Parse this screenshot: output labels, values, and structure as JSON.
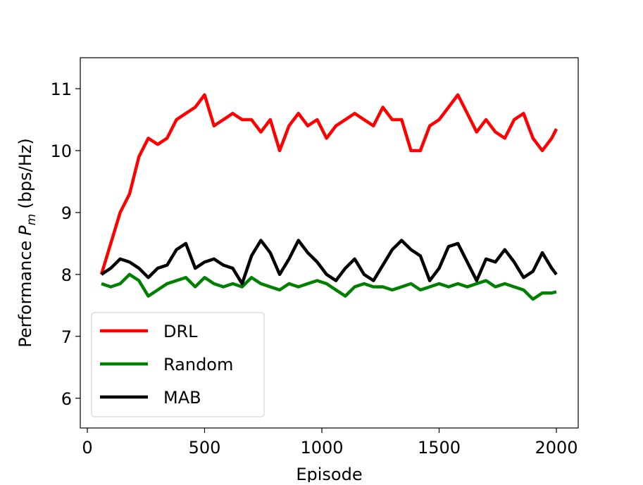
{
  "chart_data": {
    "type": "line",
    "xlabel": "Episode",
    "ylabel": [
      "Performance",
      "P",
      "m",
      "(bps/Hz)"
    ],
    "x": [
      60,
      100,
      140,
      180,
      220,
      260,
      300,
      340,
      380,
      420,
      460,
      500,
      540,
      580,
      620,
      660,
      700,
      740,
      780,
      820,
      860,
      900,
      940,
      980,
      1020,
      1060,
      1100,
      1140,
      1180,
      1220,
      1260,
      1300,
      1340,
      1380,
      1420,
      1460,
      1500,
      1540,
      1580,
      1620,
      1660,
      1700,
      1740,
      1780,
      1820,
      1860,
      1900,
      1940,
      1980,
      2000
    ],
    "series": [
      {
        "name": "DRL",
        "color": "#ff0000",
        "values": [
          8.0,
          8.5,
          9.0,
          9.3,
          9.9,
          10.2,
          10.1,
          10.2,
          10.5,
          10.6,
          10.7,
          10.9,
          10.4,
          10.5,
          10.6,
          10.5,
          10.5,
          10.3,
          10.5,
          10.0,
          10.4,
          10.6,
          10.4,
          10.5,
          10.2,
          10.4,
          10.5,
          10.6,
          10.5,
          10.4,
          10.7,
          10.5,
          10.5,
          10.0,
          10.0,
          10.4,
          10.5,
          10.7,
          10.9,
          10.6,
          10.3,
          10.5,
          10.3,
          10.2,
          10.5,
          10.6,
          10.2,
          10.0,
          10.2,
          10.35
        ]
      },
      {
        "name": "Random",
        "color": "#008000",
        "values": [
          7.85,
          7.8,
          7.85,
          8.0,
          7.9,
          7.65,
          7.75,
          7.85,
          7.9,
          7.95,
          7.8,
          7.95,
          7.85,
          7.8,
          7.85,
          7.8,
          7.95,
          7.85,
          7.8,
          7.75,
          7.85,
          7.8,
          7.85,
          7.9,
          7.85,
          7.75,
          7.65,
          7.8,
          7.85,
          7.8,
          7.8,
          7.75,
          7.8,
          7.85,
          7.75,
          7.8,
          7.85,
          7.8,
          7.85,
          7.8,
          7.85,
          7.9,
          7.8,
          7.85,
          7.8,
          7.75,
          7.6,
          7.7,
          7.7,
          7.72
        ]
      },
      {
        "name": "MAB",
        "color": "#000000",
        "values": [
          8.0,
          8.1,
          8.25,
          8.2,
          8.1,
          7.95,
          8.1,
          8.15,
          8.4,
          8.5,
          8.1,
          8.2,
          8.25,
          8.15,
          8.1,
          7.85,
          8.3,
          8.55,
          8.35,
          8.0,
          8.25,
          8.55,
          8.35,
          8.2,
          8.0,
          7.9,
          8.1,
          8.25,
          8.0,
          7.9,
          8.15,
          8.4,
          8.55,
          8.4,
          8.3,
          7.9,
          8.1,
          8.45,
          8.5,
          8.2,
          7.9,
          8.25,
          8.2,
          8.4,
          8.2,
          7.95,
          8.05,
          8.35,
          8.1,
          8.0
        ]
      }
    ],
    "xlim": [
      -30,
      2093
    ],
    "ylim": [
      5.52,
      11.5
    ],
    "xticks": [
      0,
      500,
      1000,
      1500,
      2000
    ],
    "yticks": [
      6,
      7,
      8,
      9,
      10,
      11
    ],
    "legend": "lower left",
    "grid": false
  }
}
